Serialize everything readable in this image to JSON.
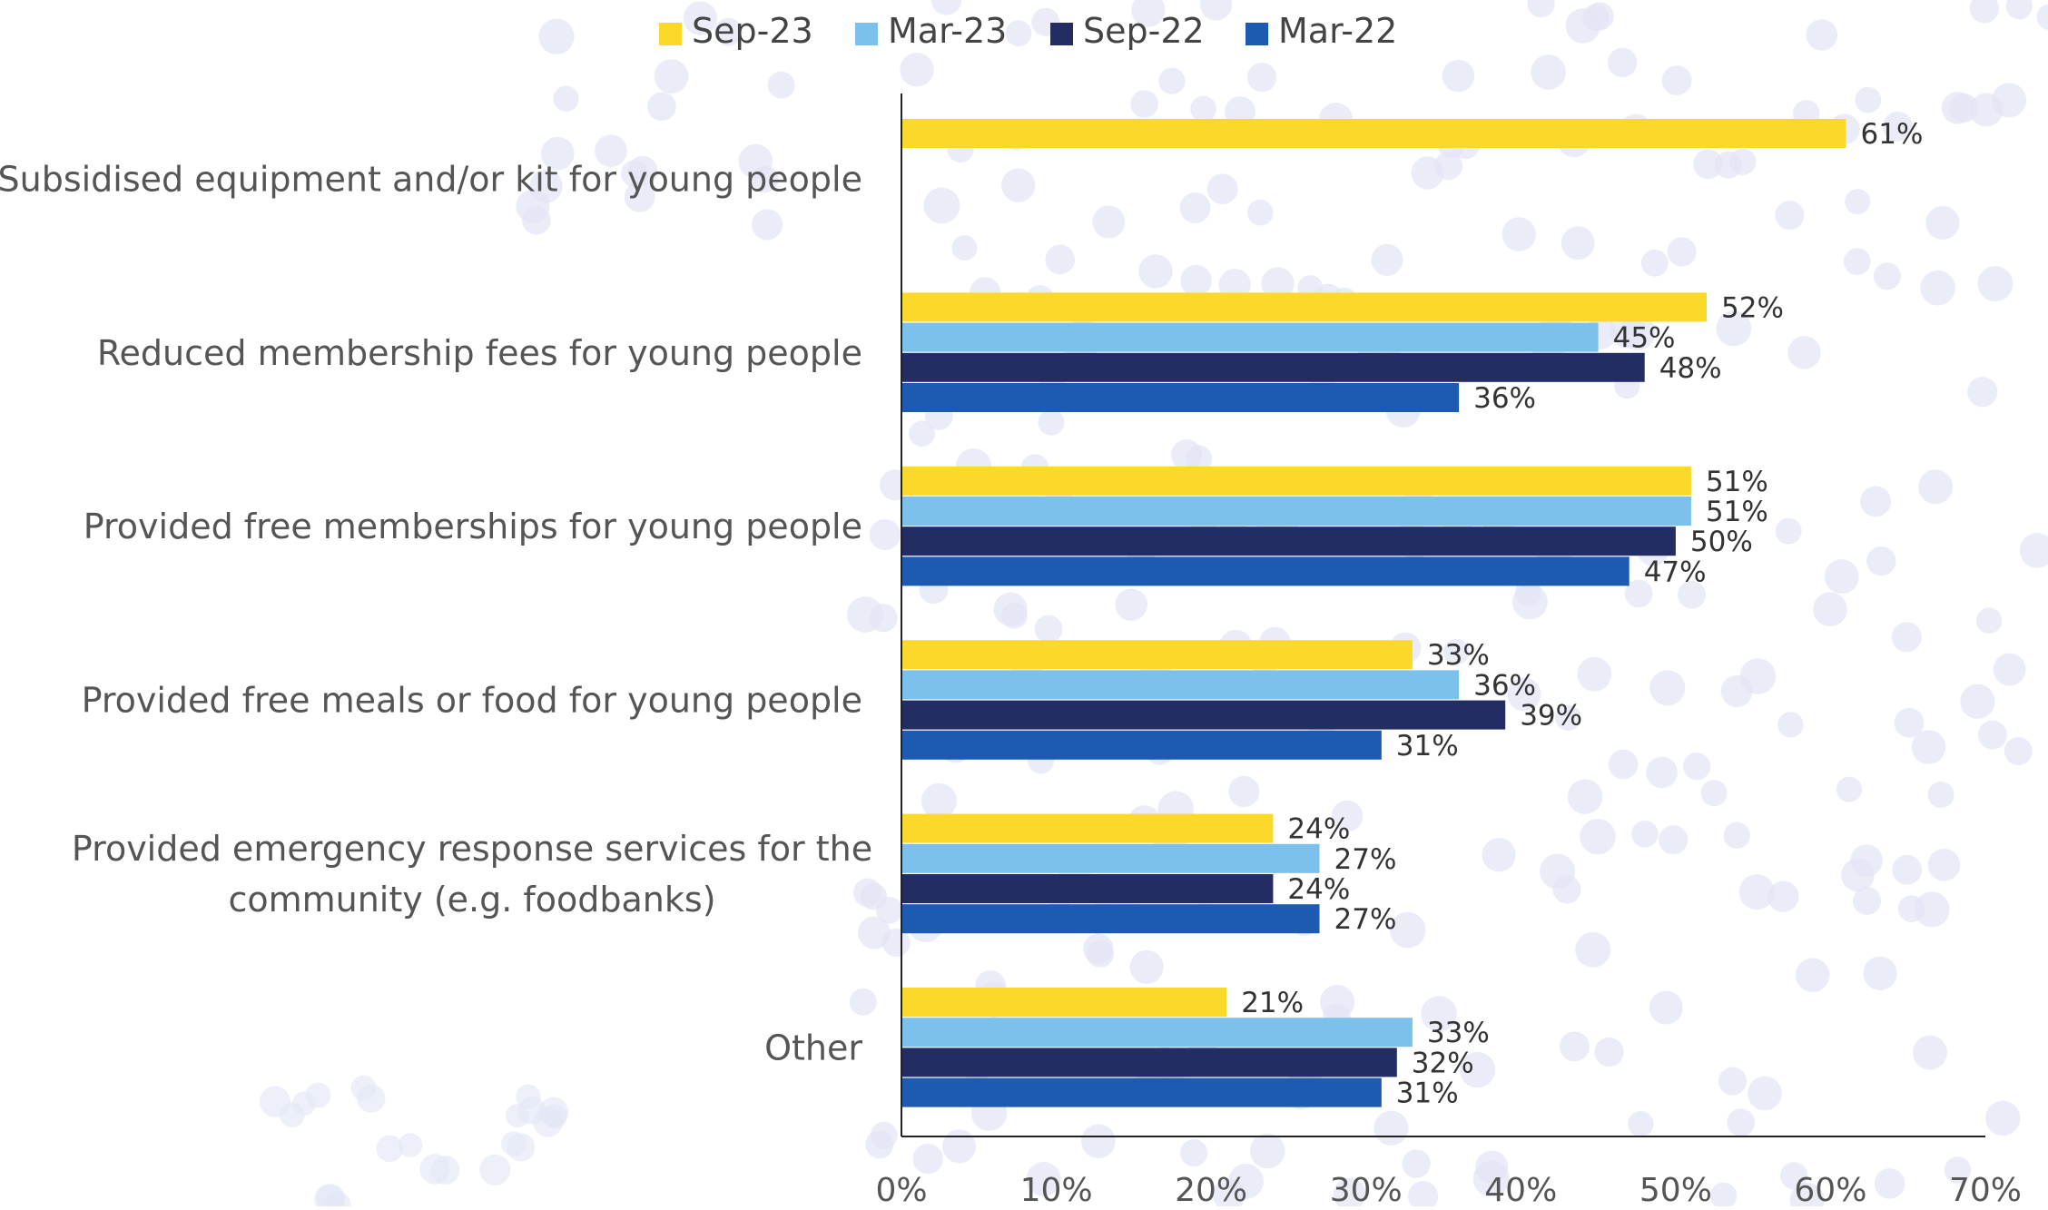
{
  "chart_data": {
    "type": "bar",
    "orientation": "horizontal",
    "categories": [
      "Subsidised equipment and/or kit for young people",
      "Reduced membership fees for young people",
      "Provided free memberships for young people",
      "Provided free meals or food for young people",
      "Provided emergency response services for the community (e.g. foodbanks)",
      "Other"
    ],
    "category_lines": [
      [
        "Subsidised equipment and/or kit for young people"
      ],
      [
        "Reduced membership fees for young people"
      ],
      [
        "Provided free memberships for young people"
      ],
      [
        "Provided free meals or food for young people"
      ],
      [
        "Provided emergency response services for the",
        "community (e.g. foodbanks)"
      ],
      [
        "Other"
      ]
    ],
    "series": [
      {
        "name": "Sep-23",
        "color": "#FBD92A",
        "values": [
          61,
          52,
          51,
          33,
          24,
          21
        ]
      },
      {
        "name": "Mar-23",
        "color": "#7CC0EC",
        "values": [
          null,
          45,
          51,
          36,
          27,
          33
        ]
      },
      {
        "name": "Sep-22",
        "color": "#232D64",
        "values": [
          null,
          48,
          50,
          39,
          24,
          32
        ]
      },
      {
        "name": "Mar-22",
        "color": "#1C5BAF",
        "values": [
          null,
          36,
          47,
          31,
          27,
          31
        ]
      }
    ],
    "xlim": [
      0,
      70
    ],
    "xticks": [
      "0%",
      "10%",
      "20%",
      "30%",
      "40%",
      "50%",
      "60%",
      "70%"
    ],
    "value_suffix": "%",
    "legend_position": "top",
    "grid": false,
    "title": "",
    "xlabel": "",
    "ylabel": ""
  }
}
